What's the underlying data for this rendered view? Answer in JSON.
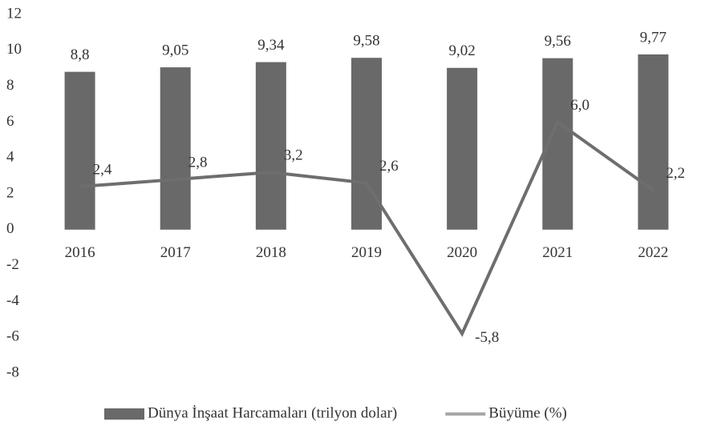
{
  "chart_data": {
    "type": "bar",
    "categories": [
      "2016",
      "2017",
      "2018",
      "2019",
      "2020",
      "2021",
      "2022"
    ],
    "series": [
      {
        "name": "Dünya İnşaat Harcamaları (trilyon dolar)",
        "type": "bar",
        "color": "#696969",
        "values": [
          8.8,
          9.05,
          9.34,
          9.58,
          9.02,
          9.56,
          9.77
        ],
        "value_labels": [
          "8,8",
          "9,05",
          "9,34",
          "9,58",
          "9,02",
          "9,56",
          "9,77"
        ]
      },
      {
        "name": "Büyüme (%)",
        "type": "line",
        "color": "#6e6e6e",
        "values": [
          2.4,
          2.8,
          3.2,
          2.6,
          -5.8,
          6.0,
          2.2
        ],
        "value_labels": [
          "2,4",
          "2,8",
          "3,2",
          "2,6",
          "-5,8",
          "6,0",
          "2,2"
        ]
      }
    ],
    "ylim": [
      -8,
      12
    ],
    "yticks": [
      -8,
      -6,
      -4,
      -2,
      0,
      2,
      4,
      6,
      8,
      10,
      12
    ],
    "grid": false,
    "legend": "bottom"
  }
}
